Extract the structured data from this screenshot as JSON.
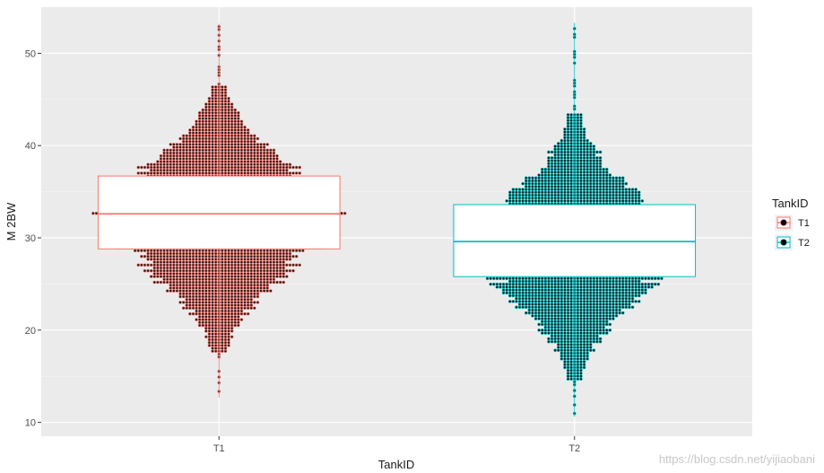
{
  "chart_data": {
    "type": "boxplot-dotplot",
    "xlabel": "TankID",
    "ylabel": "M 2BW",
    "categories": [
      "T1",
      "T2"
    ],
    "ylim": [
      8.5,
      55
    ],
    "y_ticks": [
      10,
      20,
      30,
      40,
      50
    ],
    "grid": true,
    "legend": {
      "title": "TankID",
      "position": "right",
      "entries": [
        "T1",
        "T2"
      ]
    },
    "series": [
      {
        "name": "T1",
        "color": "#F8766D",
        "box": {
          "q1": 28.8,
          "median": 32.6,
          "q3": 36.7
        },
        "whisker": [
          12.7,
          53.2
        ],
        "dot_range": [
          12.7,
          53.2
        ],
        "dot_peak": 32.0,
        "dot_halfwidth_fraction": 0.3
      },
      {
        "name": "T2",
        "color": "#00BFC4",
        "box": {
          "q1": 25.8,
          "median": 29.6,
          "q3": 33.6
        },
        "whisker": [
          10.6,
          53.3
        ],
        "dot_range": [
          10.6,
          53.3
        ],
        "dot_peak": 29.0,
        "dot_halfwidth_fraction": 0.26
      }
    ]
  },
  "watermark": "https://blog.csdn.net/yijiaobani"
}
